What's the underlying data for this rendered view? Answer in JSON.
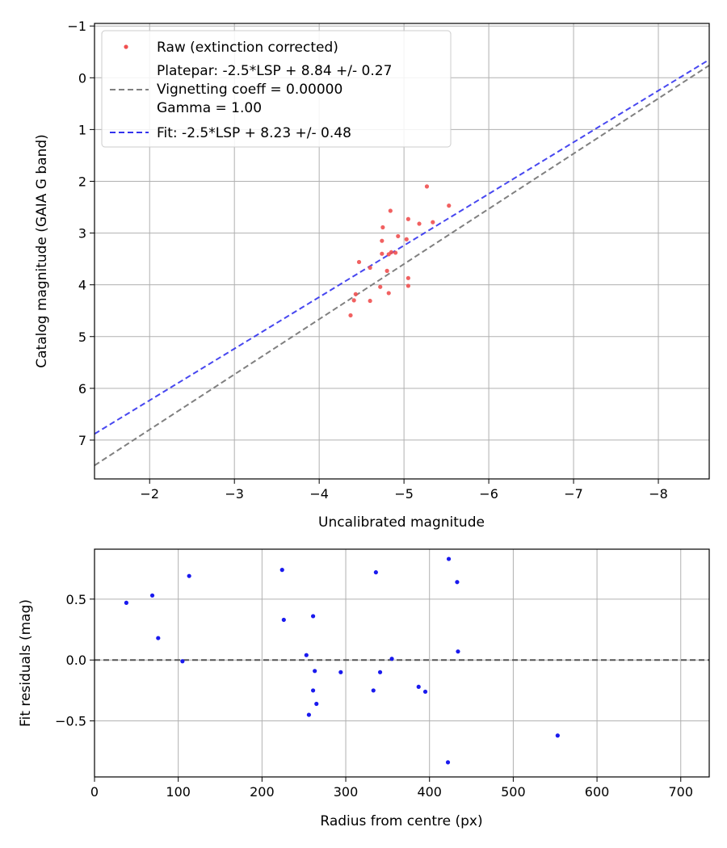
{
  "chart_data": [
    {
      "type": "scatter",
      "xlabel": "Uncalibrated magnitude",
      "ylabel": "Catalog magnitude (GAIA G band)",
      "xlim": [
        -1.35,
        -8.6
      ],
      "ylim": [
        7.75,
        -1.05
      ],
      "xticks": [
        -2,
        -3,
        -4,
        -5,
        -6,
        -7,
        -8
      ],
      "xtick_labels": [
        "−2",
        "−3",
        "−4",
        "−5",
        "−6",
        "−7",
        "−8"
      ],
      "yticks": [
        -1,
        0,
        1,
        2,
        3,
        4,
        5,
        6,
        7
      ],
      "ytick_labels": [
        "−1",
        "0",
        "1",
        "2",
        "3",
        "4",
        "5",
        "6",
        "7"
      ],
      "grid": true,
      "legend_position": "top-left",
      "legend": {
        "raw_label": "Raw (extinction corrected)",
        "platepar_lines": [
          "Platepar: -2.5*LSP + 8.84 +/- 0.27",
          "Vignetting coeff = 0.00000",
          "Gamma = 1.00"
        ],
        "fit_label": "Fit: -2.5*LSP + 8.23 +/- 0.48"
      },
      "colors": {
        "raw": "#f05050",
        "platepar": "#808080",
        "fit": "#3333ee"
      },
      "platepar_line": {
        "x": [
          -1.35,
          -8.6
        ],
        "y": [
          7.49,
          -0.24
        ]
      },
      "fit_line": {
        "x": [
          -1.35,
          -8.6
        ],
        "y": [
          6.88,
          -0.35
        ]
      },
      "raw_points": {
        "x": [
          -5.27,
          -5.53,
          -4.84,
          -5.05,
          -5.18,
          -5.34,
          -4.75,
          -4.93,
          -5.03,
          -4.74,
          -4.85,
          -4.9,
          -4.82,
          -4.47,
          -4.74,
          -4.6,
          -4.8,
          -5.05,
          -4.72,
          -5.05,
          -4.82,
          -4.43,
          -4.6,
          -4.41,
          -4.37
        ],
        "y": [
          2.1,
          2.47,
          2.57,
          2.73,
          2.82,
          2.79,
          2.89,
          3.06,
          3.12,
          3.15,
          3.37,
          3.38,
          3.41,
          3.56,
          3.4,
          3.67,
          3.73,
          3.87,
          4.04,
          4.02,
          4.16,
          4.18,
          4.31,
          4.3,
          4.59
        ]
      }
    },
    {
      "type": "scatter",
      "xlabel": "Radius from centre (px)",
      "ylabel": "Fit residuals (mag)",
      "xlim": [
        0,
        734
      ],
      "ylim": [
        -0.96,
        0.91
      ],
      "xticks": [
        0,
        100,
        200,
        300,
        400,
        500,
        600,
        700
      ],
      "xtick_labels": [
        "0",
        "100",
        "200",
        "300",
        "400",
        "500",
        "600",
        "700"
      ],
      "yticks": [
        -0.5,
        0.0,
        0.5
      ],
      "ytick_labels": [
        "−0.5",
        "0.0",
        "0.5"
      ],
      "grid": true,
      "zero_line": 0.0,
      "colors": {
        "points": "#1a1aee",
        "zero_line": "#808080"
      },
      "points": {
        "x": [
          38,
          69,
          76,
          105,
          113,
          224,
          226,
          253,
          256,
          261,
          261,
          263,
          265,
          294,
          333,
          336,
          341,
          355,
          387,
          395,
          422,
          423,
          433,
          434,
          553
        ],
        "y": [
          0.47,
          0.53,
          0.18,
          -0.01,
          0.69,
          0.74,
          0.33,
          0.04,
          -0.45,
          -0.25,
          0.36,
          -0.09,
          -0.36,
          -0.1,
          -0.25,
          0.72,
          -0.1,
          0.01,
          -0.22,
          -0.26,
          -0.84,
          0.83,
          0.64,
          0.07,
          -0.62
        ]
      }
    }
  ]
}
